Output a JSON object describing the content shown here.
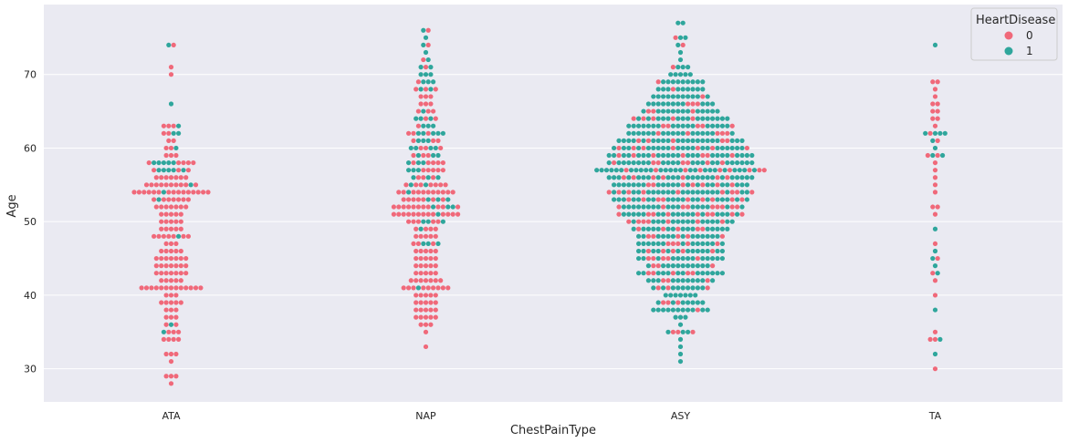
{
  "chart_data": {
    "type": "scatter",
    "subtype": "swarm",
    "title": "",
    "xlabel": "ChestPainType",
    "ylabel": "Age",
    "categories": [
      "ATA",
      "NAP",
      "ASY",
      "TA"
    ],
    "ylim": [
      25.5,
      79.5
    ],
    "yticks": [
      30,
      40,
      50,
      60,
      70
    ],
    "grid": true,
    "legend": {
      "title": "HeartDisease",
      "placement": "top-right",
      "entries": [
        "0",
        "1"
      ]
    },
    "colors": {
      "0": "#f0697a",
      "1": "#2fa69c",
      "background": "#eaeaf2",
      "grid": "#ffffff"
    },
    "series": [
      {
        "name": "0",
        "counts": {
          "ATA": [
            [
              28,
              1
            ],
            [
              29,
              3
            ],
            [
              31,
              1
            ],
            [
              32,
              3
            ],
            [
              34,
              4
            ],
            [
              35,
              3
            ],
            [
              36,
              2
            ],
            [
              37,
              3
            ],
            [
              38,
              3
            ],
            [
              39,
              5
            ],
            [
              40,
              3
            ],
            [
              41,
              13
            ],
            [
              42,
              5
            ],
            [
              43,
              7
            ],
            [
              44,
              7
            ],
            [
              45,
              7
            ],
            [
              46,
              5
            ],
            [
              47,
              3
            ],
            [
              48,
              7
            ],
            [
              49,
              5
            ],
            [
              50,
              5
            ],
            [
              51,
              5
            ],
            [
              52,
              7
            ],
            [
              53,
              7
            ],
            [
              54,
              15
            ],
            [
              55,
              10
            ],
            [
              56,
              7
            ],
            [
              57,
              3
            ],
            [
              58,
              5
            ],
            [
              59,
              3
            ],
            [
              60,
              2
            ],
            [
              61,
              2
            ],
            [
              62,
              2
            ],
            [
              63,
              3
            ],
            [
              70,
              1
            ],
            [
              71,
              1
            ],
            [
              74,
              1
            ]
          ],
          "NAP": [
            [
              33,
              1
            ],
            [
              35,
              1
            ],
            [
              36,
              3
            ],
            [
              37,
              5
            ],
            [
              38,
              5
            ],
            [
              39,
              5
            ],
            [
              40,
              5
            ],
            [
              41,
              9
            ],
            [
              42,
              7
            ],
            [
              43,
              5
            ],
            [
              44,
              5
            ],
            [
              45,
              5
            ],
            [
              46,
              5
            ],
            [
              47,
              3
            ],
            [
              48,
              5
            ],
            [
              49,
              4
            ],
            [
              50,
              5
            ],
            [
              51,
              13
            ],
            [
              52,
              11
            ],
            [
              53,
              7
            ],
            [
              54,
              11
            ],
            [
              55,
              7
            ],
            [
              56,
              3
            ],
            [
              57,
              5
            ],
            [
              58,
              5
            ],
            [
              59,
              3
            ],
            [
              60,
              3
            ],
            [
              61,
              3
            ],
            [
              62,
              3
            ],
            [
              63,
              1
            ],
            [
              64,
              2
            ],
            [
              65,
              3
            ],
            [
              66,
              3
            ],
            [
              67,
              3
            ],
            [
              68,
              3
            ],
            [
              69,
              1
            ],
            [
              71,
              1
            ],
            [
              72,
              1
            ],
            [
              74,
              1
            ],
            [
              76,
              1
            ]
          ],
          "ASY": [
            [
              35,
              3
            ],
            [
              38,
              1
            ],
            [
              39,
              3
            ],
            [
              41,
              3
            ],
            [
              42,
              3
            ],
            [
              43,
              5
            ],
            [
              44,
              3
            ],
            [
              45,
              5
            ],
            [
              46,
              5
            ],
            [
              47,
              5
            ],
            [
              48,
              5
            ],
            [
              49,
              5
            ],
            [
              50,
              7
            ],
            [
              51,
              9
            ],
            [
              52,
              9
            ],
            [
              53,
              9
            ],
            [
              54,
              9
            ],
            [
              55,
              7
            ],
            [
              56,
              7
            ],
            [
              57,
              9
            ],
            [
              58,
              7
            ],
            [
              59,
              7
            ],
            [
              60,
              7
            ],
            [
              61,
              5
            ],
            [
              62,
              5
            ],
            [
              63,
              5
            ],
            [
              64,
              5
            ],
            [
              65,
              3
            ],
            [
              66,
              3
            ],
            [
              67,
              1
            ],
            [
              68,
              1
            ],
            [
              69,
              1
            ],
            [
              71,
              1
            ],
            [
              74,
              1
            ],
            [
              75,
              1
            ]
          ],
          "TA": [
            [
              30,
              1
            ],
            [
              34,
              2
            ],
            [
              35,
              1
            ],
            [
              40,
              1
            ],
            [
              42,
              1
            ],
            [
              43,
              1
            ],
            [
              45,
              1
            ],
            [
              47,
              1
            ],
            [
              51,
              1
            ],
            [
              52,
              2
            ],
            [
              54,
              1
            ],
            [
              55,
              1
            ],
            [
              56,
              1
            ],
            [
              57,
              1
            ],
            [
              58,
              1
            ],
            [
              59,
              2
            ],
            [
              61,
              1
            ],
            [
              62,
              1
            ],
            [
              63,
              1
            ],
            [
              64,
              2
            ],
            [
              65,
              2
            ],
            [
              66,
              2
            ],
            [
              67,
              1
            ],
            [
              68,
              1
            ],
            [
              69,
              2
            ]
          ]
        }
      },
      {
        "name": "1",
        "counts": {
          "ATA": [
            [
              35,
              1
            ],
            [
              36,
              1
            ],
            [
              48,
              1
            ],
            [
              53,
              1
            ],
            [
              54,
              1
            ],
            [
              55,
              1
            ],
            [
              57,
              5
            ],
            [
              58,
              5
            ],
            [
              60,
              1
            ],
            [
              62,
              2
            ],
            [
              63,
              1
            ],
            [
              66,
              1
            ],
            [
              74,
              1
            ]
          ],
          "NAP": [
            [
              41,
              1
            ],
            [
              47,
              3
            ],
            [
              49,
              1
            ],
            [
              50,
              3
            ],
            [
              51,
              1
            ],
            [
              52,
              3
            ],
            [
              53,
              3
            ],
            [
              54,
              1
            ],
            [
              55,
              2
            ],
            [
              56,
              3
            ],
            [
              57,
              3
            ],
            [
              58,
              3
            ],
            [
              59,
              3
            ],
            [
              60,
              4
            ],
            [
              61,
              3
            ],
            [
              62,
              5
            ],
            [
              63,
              3
            ],
            [
              64,
              3
            ],
            [
              65,
              1
            ],
            [
              68,
              2
            ],
            [
              69,
              3
            ],
            [
              70,
              3
            ],
            [
              71,
              2
            ],
            [
              72,
              1
            ],
            [
              73,
              1
            ],
            [
              74,
              1
            ],
            [
              75,
              1
            ],
            [
              76,
              1
            ]
          ],
          "ASY": [
            [
              31,
              1
            ],
            [
              32,
              1
            ],
            [
              33,
              1
            ],
            [
              34,
              1
            ],
            [
              35,
              3
            ],
            [
              36,
              1
            ],
            [
              37,
              3
            ],
            [
              38,
              11
            ],
            [
              39,
              7
            ],
            [
              40,
              7
            ],
            [
              41,
              9
            ],
            [
              42,
              11
            ],
            [
              43,
              13
            ],
            [
              44,
              11
            ],
            [
              45,
              13
            ],
            [
              46,
              13
            ],
            [
              47,
              13
            ],
            [
              48,
              13
            ],
            [
              49,
              15
            ],
            [
              50,
              15
            ],
            [
              51,
              17
            ],
            [
              52,
              17
            ],
            [
              53,
              19
            ],
            [
              54,
              21
            ],
            [
              55,
              21
            ],
            [
              56,
              23
            ],
            [
              57,
              26
            ],
            [
              58,
              23
            ],
            [
              59,
              23
            ],
            [
              60,
              21
            ],
            [
              61,
              21
            ],
            [
              62,
              17
            ],
            [
              63,
              17
            ],
            [
              64,
              15
            ],
            [
              65,
              13
            ],
            [
              66,
              11
            ],
            [
              67,
              11
            ],
            [
              68,
              9
            ],
            [
              69,
              9
            ],
            [
              70,
              5
            ],
            [
              71,
              3
            ],
            [
              72,
              1
            ],
            [
              73,
              1
            ],
            [
              74,
              1
            ],
            [
              75,
              2
            ],
            [
              77,
              2
            ]
          ],
          "TA": [
            [
              32,
              1
            ],
            [
              34,
              1
            ],
            [
              38,
              1
            ],
            [
              43,
              1
            ],
            [
              44,
              1
            ],
            [
              45,
              1
            ],
            [
              46,
              1
            ],
            [
              49,
              1
            ],
            [
              59,
              2
            ],
            [
              60,
              1
            ],
            [
              61,
              1
            ],
            [
              62,
              4
            ],
            [
              74,
              1
            ]
          ]
        }
      }
    ]
  }
}
